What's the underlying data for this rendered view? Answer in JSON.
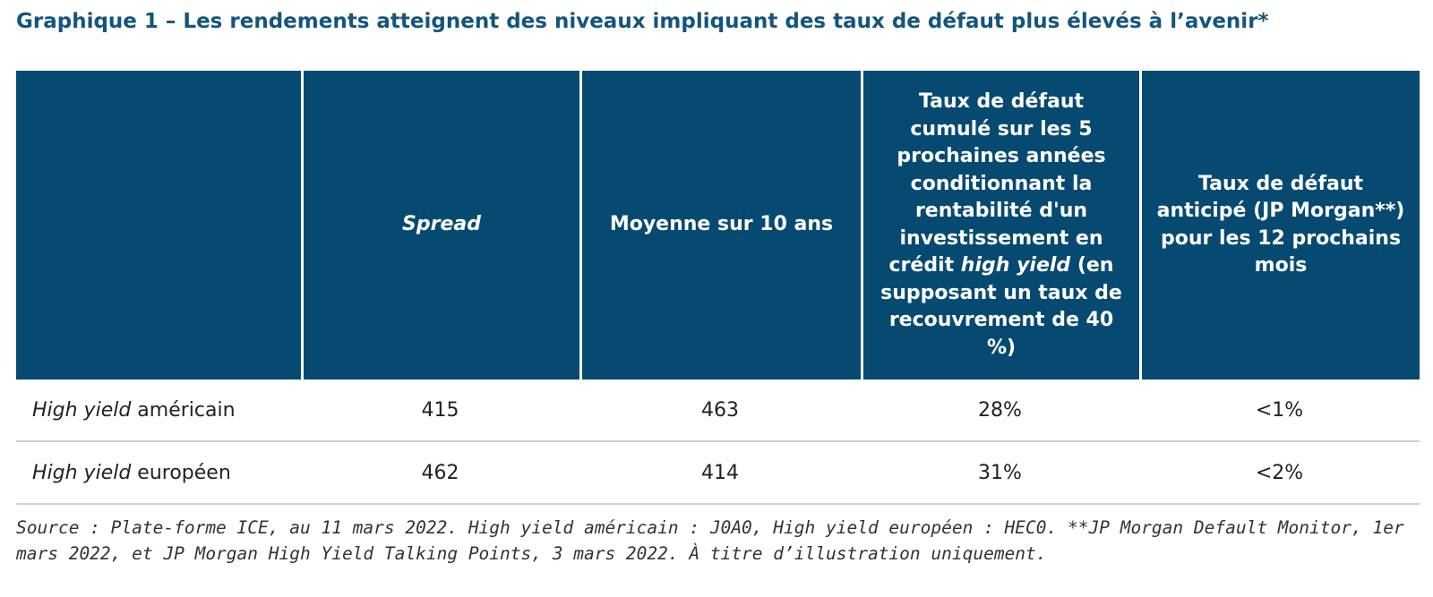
{
  "title": "Graphique 1 – Les rendements atteignent des niveaux impliquant des taux de défaut plus élevés à l’avenir*",
  "chart_data": {
    "type": "table",
    "columns": [
      "",
      "Spread",
      "Moyenne sur 10 ans",
      "Taux de défaut cumulé sur les 5 prochaines années conditionnant la rentabilité d'un investissement en crédit high yield (en supposant un taux de recouvrement de 40 %)",
      "Taux de défaut anticipé (JP Morgan**) pour les 12 prochains mois"
    ],
    "header_parts": {
      "col3_before": "Taux de défaut cumulé sur les 5 prochaines années conditionnant la rentabilité d'un investissement en crédit ",
      "col3_italic": "high yield",
      "col3_after": " (en supposant un taux de recouvrement de 40 %)"
    },
    "rows": [
      {
        "label_italic": "High yield",
        "label_rest": " américain",
        "spread": "415",
        "avg10": "463",
        "cum_default": "28%",
        "expected_default": "<1%"
      },
      {
        "label_italic": "High yield",
        "label_rest": " européen",
        "spread": "462",
        "avg10": "414",
        "cum_default": "31%",
        "expected_default": "<2%"
      }
    ]
  },
  "source": "Source : Plate-forme ICE, au 11 mars 2022. High yield américain : J0A0, High yield européen : HEC0. **JP Morgan Default Monitor, 1er mars 2022, et JP Morgan High Yield Talking Points, 3 mars 2022. À titre d’illustration uniquement.",
  "colors": {
    "header_bg": "#064a72",
    "title": "#13557e",
    "row_rule": "#cfcfcf"
  }
}
